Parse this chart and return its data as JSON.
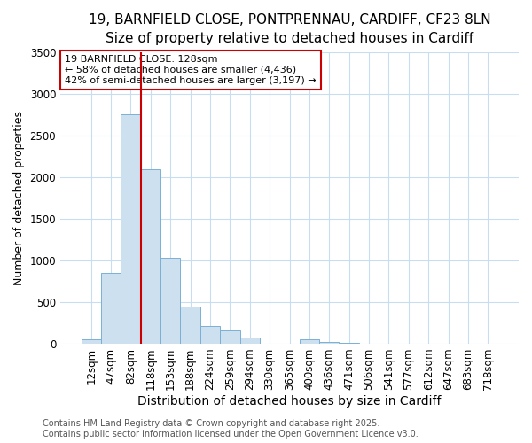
{
  "title_line1": "19, BARNFIELD CLOSE, PONTPRENNAU, CARDIFF, CF23 8LN",
  "title_line2": "Size of property relative to detached houses in Cardiff",
  "xlabel": "Distribution of detached houses by size in Cardiff",
  "ylabel": "Number of detached properties",
  "categories": [
    "12sqm",
    "47sqm",
    "82sqm",
    "118sqm",
    "153sqm",
    "188sqm",
    "224sqm",
    "259sqm",
    "294sqm",
    "330sqm",
    "365sqm",
    "400sqm",
    "436sqm",
    "471sqm",
    "506sqm",
    "541sqm",
    "577sqm",
    "612sqm",
    "647sqm",
    "683sqm",
    "718sqm"
  ],
  "values": [
    55,
    850,
    2760,
    2100,
    1030,
    450,
    210,
    155,
    70,
    0,
    0,
    55,
    20,
    10,
    0,
    0,
    0,
    0,
    0,
    0,
    0
  ],
  "bar_color": "#cce0f0",
  "bar_edge_color": "#7ab0d4",
  "vline_color": "#cc0000",
  "vline_index": 3,
  "ylim": [
    0,
    3500
  ],
  "yticks": [
    0,
    500,
    1000,
    1500,
    2000,
    2500,
    3000,
    3500
  ],
  "annotation_text": "19 BARNFIELD CLOSE: 128sqm\n← 58% of detached houses are smaller (4,436)\n42% of semi-detached houses are larger (3,197) →",
  "annotation_box_color": "#cc0000",
  "annotation_bg": "#ffffff",
  "footer_line1": "Contains HM Land Registry data © Crown copyright and database right 2025.",
  "footer_line2": "Contains public sector information licensed under the Open Government Licence v3.0.",
  "bg_color": "#ffffff",
  "grid_color": "#c8ddf0",
  "title_fontsize": 11,
  "subtitle_fontsize": 10,
  "tick_fontsize": 8.5,
  "ylabel_fontsize": 9,
  "xlabel_fontsize": 10,
  "footer_fontsize": 7
}
